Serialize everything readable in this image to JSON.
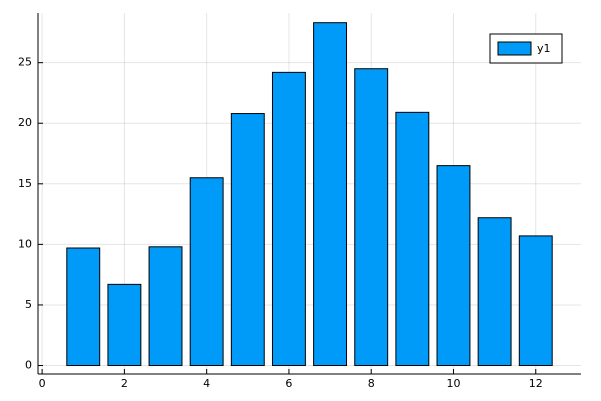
{
  "chart_data": {
    "type": "bar",
    "x": [
      1,
      2,
      3,
      4,
      5,
      6,
      7,
      8,
      9,
      10,
      11,
      12
    ],
    "series": [
      {
        "name": "y1",
        "color": "#009af9",
        "values": [
          9.7,
          6.7,
          9.8,
          15.5,
          20.8,
          24.2,
          28.3,
          24.5,
          20.9,
          16.5,
          12.2,
          10.7
        ]
      }
    ],
    "xlim": [
      -0.1,
      13.1
    ],
    "xticks": [
      0,
      2,
      4,
      6,
      8,
      10,
      12
    ],
    "ylim": [
      -0.7,
      29.1
    ],
    "yticks": [
      0,
      5,
      10,
      15,
      20,
      25
    ],
    "grid": true,
    "legend": "topright"
  }
}
